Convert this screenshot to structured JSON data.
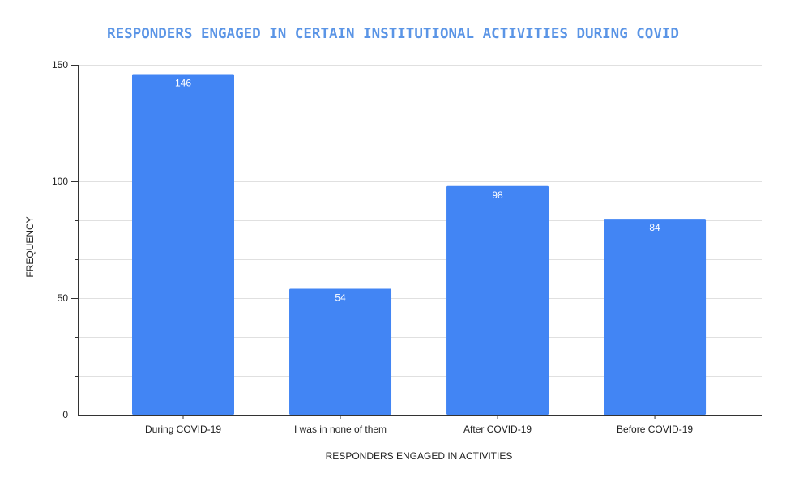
{
  "chart_data": {
    "type": "bar",
    "title": "RESPONDERS ENGAGED IN CERTAIN INSTITUTIONAL ACTIVITIES DURING COVID",
    "xlabel": "RESPONDERS ENGAGED IN ACTIVITIES",
    "ylabel": "FREQUENCY",
    "categories": [
      "During COVID-19",
      "I was in none of them",
      "After COVID-19",
      "Before COVID-19"
    ],
    "values": [
      146,
      54,
      98,
      84
    ],
    "data_labels": [
      "146",
      "54",
      "98",
      "84"
    ],
    "y_ticks": [
      0,
      50,
      100,
      150
    ],
    "y_tick_labels": [
      "0",
      "50",
      "100",
      "150"
    ],
    "ylim": [
      0,
      150
    ],
    "grid": true,
    "legend": "none",
    "colors": {
      "bar": "#4285F4",
      "title": "#5B95E6",
      "grid": "#E0E0E0",
      "axis": "#333333",
      "text": "#222222",
      "data_label": "#FFFFFF"
    }
  }
}
